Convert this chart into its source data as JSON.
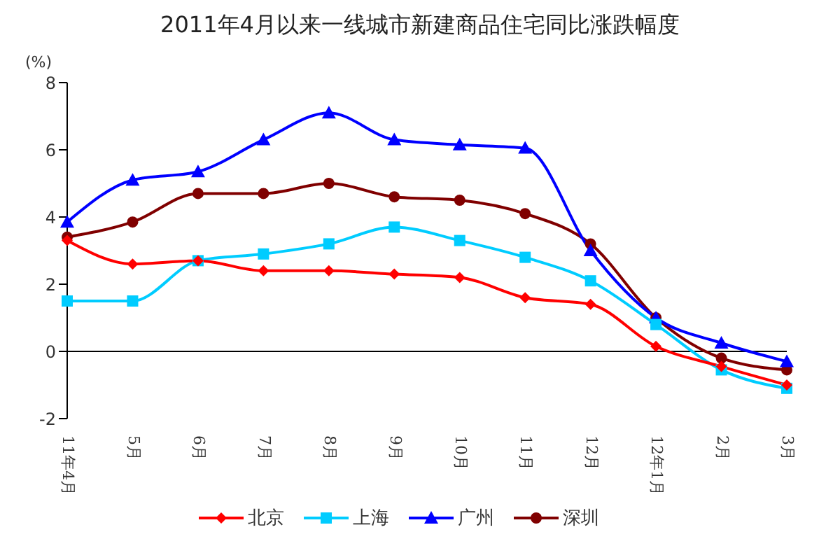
{
  "chart_data": {
    "type": "line",
    "title": "2011年4月以来一线城市新建商品住宅同比涨跌幅度",
    "ylabel": "(%)",
    "categories": [
      "11年4月",
      "5月",
      "6月",
      "7月",
      "8月",
      "9月",
      "10月",
      "11月",
      "12月",
      "12年1月",
      "2月",
      "3月"
    ],
    "series": [
      {
        "name": "北京",
        "color": "#ff0000",
        "marker": "diamond",
        "values": [
          3.3,
          2.6,
          2.7,
          2.4,
          2.4,
          2.3,
          2.2,
          1.6,
          1.4,
          0.15,
          -0.45,
          -1.0
        ]
      },
      {
        "name": "上海",
        "color": "#00ccff",
        "marker": "square",
        "values": [
          1.5,
          1.5,
          2.7,
          2.9,
          3.2,
          3.7,
          3.3,
          2.8,
          2.1,
          0.8,
          -0.55,
          -1.1
        ]
      },
      {
        "name": "广州",
        "color": "#0000ff",
        "marker": "triangle",
        "values": [
          3.85,
          5.1,
          5.35,
          6.3,
          7.1,
          6.3,
          6.15,
          6.05,
          3.0,
          1.0,
          0.25,
          -0.3
        ]
      },
      {
        "name": "深圳",
        "color": "#800000",
        "marker": "circle",
        "values": [
          3.4,
          3.85,
          4.7,
          4.7,
          5.0,
          4.6,
          4.5,
          4.1,
          3.2,
          1.0,
          -0.2,
          -0.55
        ]
      }
    ],
    "ylim": [
      -2,
      8
    ],
    "yticks": [
      -2,
      0,
      2,
      4,
      6,
      8
    ],
    "legend": "bottom"
  }
}
